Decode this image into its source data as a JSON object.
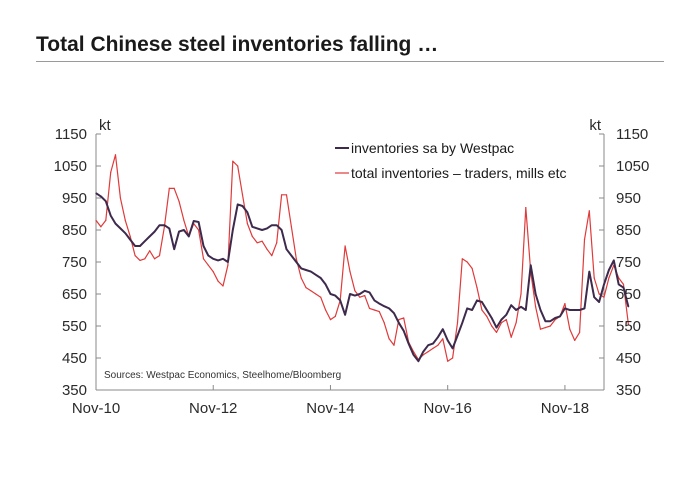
{
  "header": {
    "title": "Total Chinese steel inventories falling …"
  },
  "chart_data": {
    "type": "line",
    "title": "Total Chinese steel inventories falling …",
    "xlabel": "",
    "ylabel_left": "kt",
    "ylabel_right": "kt",
    "ylim": [
      350,
      1150
    ],
    "yticks": [
      350,
      450,
      550,
      650,
      750,
      850,
      950,
      1050,
      1150
    ],
    "xlim": [
      0,
      104
    ],
    "xticks": [
      {
        "label": "Nov-10",
        "month_index": 0
      },
      {
        "label": "Nov-12",
        "month_index": 24
      },
      {
        "label": "Nov-14",
        "month_index": 48
      },
      {
        "label": "Nov-16",
        "month_index": 72
      },
      {
        "label": "Nov-18",
        "month_index": 96
      }
    ],
    "x_units": "months since Nov-2010",
    "source": "Sources: Westpac Economics, Steelhome/Bloomberg",
    "legend_position": "top-right",
    "series": [
      {
        "name": "inventories sa by Westpac",
        "color": "#3d2a4c",
        "points": [
          [
            0,
            965
          ],
          [
            1,
            955
          ],
          [
            2,
            940
          ],
          [
            3,
            895
          ],
          [
            4,
            870
          ],
          [
            5,
            855
          ],
          [
            6,
            840
          ],
          [
            7,
            820
          ],
          [
            8,
            800
          ],
          [
            9,
            800
          ],
          [
            10,
            815
          ],
          [
            11,
            830
          ],
          [
            12,
            845
          ],
          [
            13,
            865
          ],
          [
            14,
            865
          ],
          [
            15,
            855
          ],
          [
            16,
            790
          ],
          [
            17,
            845
          ],
          [
            18,
            850
          ],
          [
            19,
            830
          ],
          [
            20,
            878
          ],
          [
            21,
            875
          ],
          [
            22,
            800
          ],
          [
            23,
            770
          ],
          [
            24,
            760
          ],
          [
            25,
            755
          ],
          [
            26,
            760
          ],
          [
            27,
            750
          ],
          [
            28,
            850
          ],
          [
            29,
            930
          ],
          [
            30,
            925
          ],
          [
            31,
            905
          ],
          [
            32,
            860
          ],
          [
            33,
            855
          ],
          [
            34,
            850
          ],
          [
            35,
            855
          ],
          [
            36,
            865
          ],
          [
            37,
            865
          ],
          [
            38,
            850
          ],
          [
            39,
            790
          ],
          [
            40,
            770
          ],
          [
            41,
            750
          ],
          [
            42,
            730
          ],
          [
            43,
            725
          ],
          [
            44,
            720
          ],
          [
            45,
            710
          ],
          [
            46,
            700
          ],
          [
            47,
            680
          ],
          [
            48,
            650
          ],
          [
            49,
            645
          ],
          [
            50,
            630
          ],
          [
            51,
            585
          ],
          [
            52,
            650
          ],
          [
            53,
            645
          ],
          [
            54,
            650
          ],
          [
            55,
            660
          ],
          [
            56,
            655
          ],
          [
            57,
            630
          ],
          [
            58,
            620
          ],
          [
            59,
            612
          ],
          [
            60,
            605
          ],
          [
            61,
            590
          ],
          [
            62,
            560
          ],
          [
            63,
            535
          ],
          [
            64,
            495
          ],
          [
            65,
            460
          ],
          [
            66,
            440
          ],
          [
            67,
            470
          ],
          [
            68,
            490
          ],
          [
            69,
            495
          ],
          [
            70,
            515
          ],
          [
            71,
            540
          ],
          [
            72,
            505
          ],
          [
            73,
            480
          ],
          [
            74,
            520
          ],
          [
            75,
            560
          ],
          [
            76,
            605
          ],
          [
            77,
            600
          ],
          [
            78,
            630
          ],
          [
            79,
            625
          ],
          [
            80,
            600
          ],
          [
            81,
            575
          ],
          [
            82,
            545
          ],
          [
            83,
            570
          ],
          [
            84,
            585
          ],
          [
            85,
            615
          ],
          [
            86,
            600
          ],
          [
            87,
            610
          ],
          [
            88,
            600
          ],
          [
            89,
            740
          ],
          [
            90,
            650
          ],
          [
            91,
            600
          ],
          [
            92,
            565
          ],
          [
            93,
            565
          ],
          [
            94,
            575
          ],
          [
            95,
            580
          ],
          [
            96,
            605
          ],
          [
            97,
            600
          ],
          [
            98,
            600
          ],
          [
            99,
            600
          ],
          [
            100,
            605
          ],
          [
            101,
            720
          ],
          [
            102,
            640
          ],
          [
            103,
            625
          ],
          [
            104,
            680
          ],
          [
            105,
            725
          ],
          [
            106,
            755
          ],
          [
            107,
            680
          ],
          [
            108,
            670
          ],
          [
            109,
            610
          ]
        ]
      },
      {
        "name": "total inventories – traders, mills etc",
        "color": "#e03a3a",
        "points": [
          [
            0,
            880
          ],
          [
            1,
            860
          ],
          [
            2,
            880
          ],
          [
            3,
            1030
          ],
          [
            4,
            1085
          ],
          [
            5,
            950
          ],
          [
            6,
            880
          ],
          [
            7,
            830
          ],
          [
            8,
            770
          ],
          [
            9,
            755
          ],
          [
            10,
            760
          ],
          [
            11,
            785
          ],
          [
            12,
            760
          ],
          [
            13,
            770
          ],
          [
            14,
            860
          ],
          [
            15,
            980
          ],
          [
            16,
            980
          ],
          [
            17,
            940
          ],
          [
            18,
            880
          ],
          [
            19,
            830
          ],
          [
            20,
            870
          ],
          [
            21,
            850
          ],
          [
            22,
            760
          ],
          [
            23,
            740
          ],
          [
            24,
            720
          ],
          [
            25,
            690
          ],
          [
            26,
            675
          ],
          [
            27,
            740
          ],
          [
            28,
            1065
          ],
          [
            29,
            1050
          ],
          [
            30,
            960
          ],
          [
            31,
            870
          ],
          [
            32,
            830
          ],
          [
            33,
            810
          ],
          [
            34,
            815
          ],
          [
            35,
            790
          ],
          [
            36,
            770
          ],
          [
            37,
            810
          ],
          [
            38,
            960
          ],
          [
            39,
            960
          ],
          [
            40,
            860
          ],
          [
            41,
            760
          ],
          [
            42,
            700
          ],
          [
            43,
            670
          ],
          [
            44,
            660
          ],
          [
            45,
            650
          ],
          [
            46,
            640
          ],
          [
            47,
            600
          ],
          [
            48,
            570
          ],
          [
            49,
            580
          ],
          [
            50,
            630
          ],
          [
            51,
            800
          ],
          [
            52,
            720
          ],
          [
            53,
            660
          ],
          [
            54,
            640
          ],
          [
            55,
            645
          ],
          [
            56,
            605
          ],
          [
            57,
            600
          ],
          [
            58,
            595
          ],
          [
            59,
            560
          ],
          [
            60,
            510
          ],
          [
            61,
            490
          ],
          [
            62,
            570
          ],
          [
            63,
            575
          ],
          [
            64,
            500
          ],
          [
            65,
            470
          ],
          [
            66,
            445
          ],
          [
            67,
            460
          ],
          [
            68,
            470
          ],
          [
            69,
            480
          ],
          [
            70,
            490
          ],
          [
            71,
            510
          ],
          [
            72,
            440
          ],
          [
            73,
            450
          ],
          [
            74,
            560
          ],
          [
            75,
            760
          ],
          [
            76,
            750
          ],
          [
            77,
            730
          ],
          [
            78,
            670
          ],
          [
            79,
            600
          ],
          [
            80,
            580
          ],
          [
            81,
            550
          ],
          [
            82,
            530
          ],
          [
            83,
            560
          ],
          [
            84,
            570
          ],
          [
            85,
            515
          ],
          [
            86,
            560
          ],
          [
            87,
            650
          ],
          [
            88,
            920
          ],
          [
            89,
            720
          ],
          [
            90,
            610
          ],
          [
            91,
            540
          ],
          [
            92,
            545
          ],
          [
            93,
            550
          ],
          [
            94,
            570
          ],
          [
            95,
            580
          ],
          [
            96,
            620
          ],
          [
            97,
            540
          ],
          [
            98,
            505
          ],
          [
            99,
            530
          ],
          [
            100,
            820
          ],
          [
            101,
            910
          ],
          [
            102,
            700
          ],
          [
            103,
            650
          ],
          [
            104,
            640
          ],
          [
            105,
            700
          ],
          [
            106,
            740
          ],
          [
            107,
            700
          ],
          [
            108,
            680
          ],
          [
            109,
            555
          ]
        ]
      }
    ]
  }
}
